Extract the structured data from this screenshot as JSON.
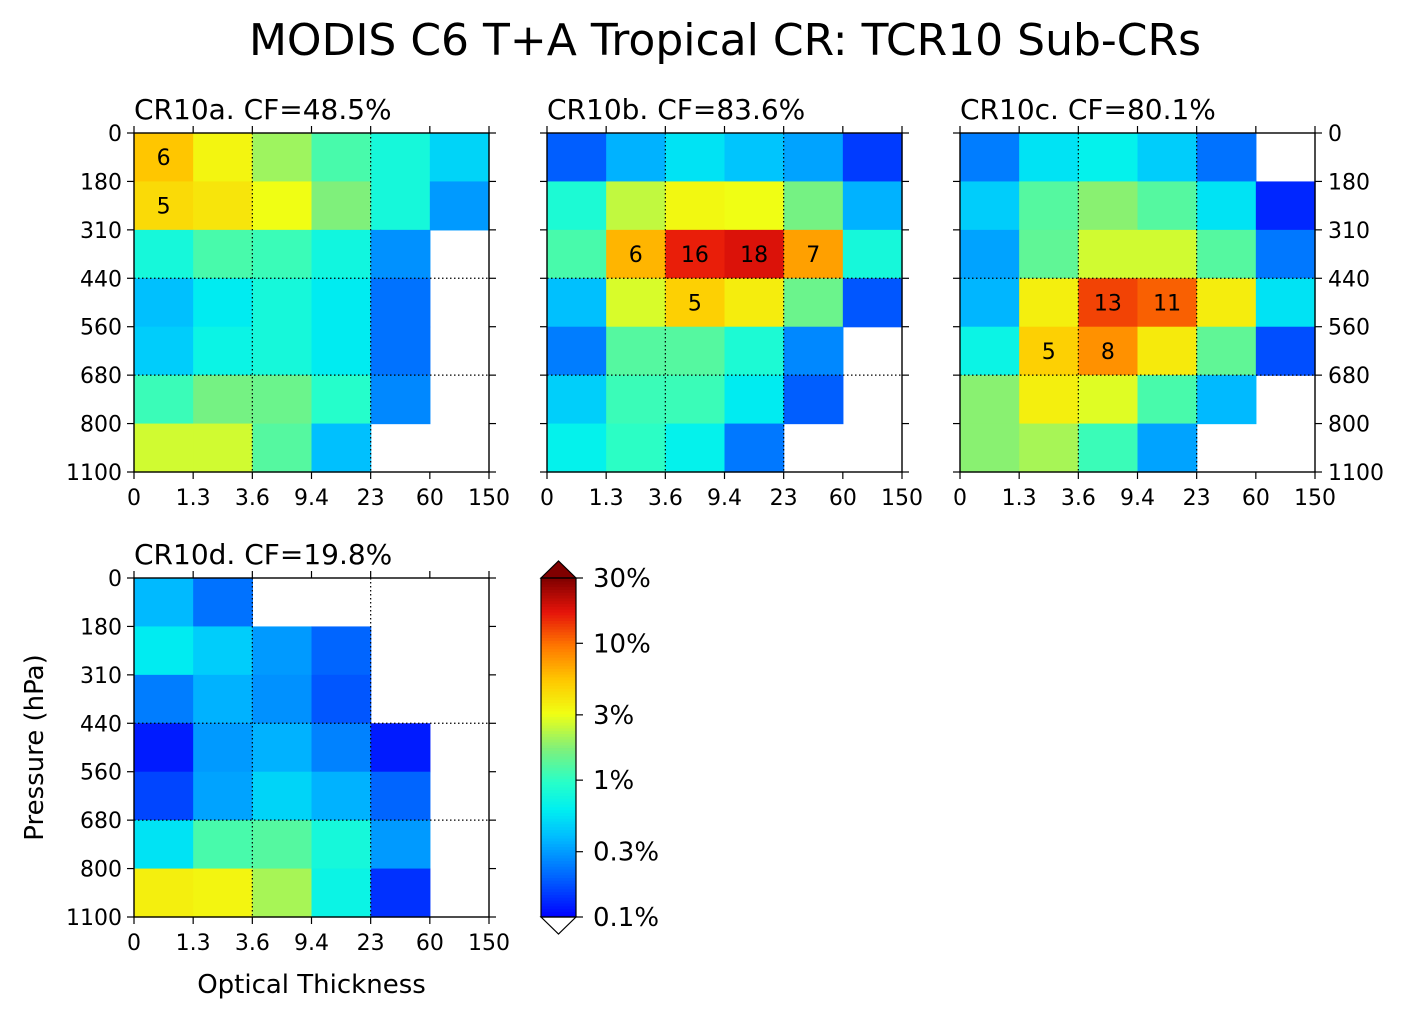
{
  "suptitle": "MODIS C6 T+A Tropical CR: TCR10 Sub-CRs",
  "chart_data": {
    "type": "heatmap",
    "x_tick_labels": [
      "0",
      "1.3",
      "3.6",
      "9.4",
      "23",
      "60",
      "150"
    ],
    "y_tick_labels": [
      "0",
      "180",
      "310",
      "440",
      "560",
      "680",
      "800",
      "1100"
    ],
    "xlabel": "Optical Thickness",
    "ylabel": "Pressure (hPa)",
    "value_unit": "%",
    "color_scale": "log",
    "colorbar": {
      "range": [
        0.1,
        30
      ],
      "extend": "both",
      "tick_values": [
        0.1,
        0.3,
        1,
        3,
        10,
        30
      ],
      "tick_labels": [
        "0.1%",
        "0.3%",
        "1%",
        "3%",
        "10%",
        "30%"
      ]
    },
    "panels": [
      {
        "title": "CR10a. CF=48.5%",
        "values": [
          [
            5.5,
            3.4,
            2.0,
            1.2,
            0.8,
            0.48
          ],
          [
            4.5,
            4.0,
            3.1,
            1.7,
            0.8,
            0.3
          ],
          [
            0.8,
            1.2,
            1.1,
            0.75,
            0.28,
            null
          ],
          [
            0.4,
            0.6,
            0.8,
            0.6,
            0.22,
            null
          ],
          [
            0.45,
            0.7,
            0.8,
            0.6,
            0.22,
            null
          ],
          [
            1.1,
            1.6,
            1.5,
            0.95,
            0.26,
            null
          ],
          [
            2.6,
            2.6,
            1.3,
            0.4,
            null,
            null
          ]
        ],
        "labels": [
          [
            6,
            null,
            null,
            null,
            null,
            null
          ],
          [
            5,
            null,
            null,
            null,
            null,
            null
          ],
          [
            null,
            null,
            null,
            null,
            null,
            null
          ],
          [
            null,
            null,
            null,
            null,
            null,
            null
          ],
          [
            null,
            null,
            null,
            null,
            null,
            null
          ],
          [
            null,
            null,
            null,
            null,
            null,
            null
          ],
          [
            null,
            null,
            null,
            null,
            null,
            null
          ]
        ]
      },
      {
        "title": "CR10b. CF=83.6%",
        "values": [
          [
            0.19,
            0.36,
            0.55,
            0.42,
            0.32,
            0.15
          ],
          [
            0.85,
            2.4,
            3.3,
            3.1,
            1.6,
            0.36
          ],
          [
            1.2,
            6.2,
            16,
            18,
            7.2,
            0.8
          ],
          [
            0.4,
            2.7,
            5.0,
            3.7,
            1.5,
            0.18
          ],
          [
            0.24,
            1.3,
            1.3,
            0.85,
            0.26,
            null
          ],
          [
            0.46,
            1.1,
            1.1,
            0.6,
            0.19,
            null
          ],
          [
            0.65,
            1.0,
            0.65,
            0.23,
            null,
            null
          ]
        ],
        "labels": [
          [
            null,
            null,
            null,
            null,
            null,
            null
          ],
          [
            null,
            null,
            null,
            null,
            null,
            null
          ],
          [
            null,
            6,
            16,
            18,
            7,
            null
          ],
          [
            null,
            null,
            5,
            null,
            null,
            null
          ],
          [
            null,
            null,
            null,
            null,
            null,
            null
          ],
          [
            null,
            null,
            null,
            null,
            null,
            null
          ],
          [
            null,
            null,
            null,
            null,
            null,
            null
          ]
        ]
      },
      {
        "title": "CR10c. CF=80.1%",
        "values": [
          [
            0.24,
            0.55,
            0.65,
            0.45,
            0.22,
            null
          ],
          [
            0.45,
            1.3,
            1.8,
            1.3,
            0.55,
            0.13
          ],
          [
            0.32,
            1.4,
            2.6,
            2.6,
            1.3,
            0.23
          ],
          [
            0.37,
            3.6,
            13,
            11,
            3.7,
            0.55
          ],
          [
            0.7,
            5.0,
            8.0,
            3.8,
            1.4,
            0.17
          ],
          [
            1.8,
            3.6,
            2.8,
            1.2,
            0.38,
            null
          ],
          [
            1.8,
            2.1,
            1.1,
            0.32,
            null,
            null
          ]
        ],
        "labels": [
          [
            null,
            null,
            null,
            null,
            null,
            null
          ],
          [
            null,
            null,
            null,
            null,
            null,
            null
          ],
          [
            null,
            null,
            null,
            null,
            null,
            null
          ],
          [
            null,
            null,
            13,
            11,
            null,
            null
          ],
          [
            null,
            5,
            8,
            null,
            null,
            null
          ],
          [
            null,
            null,
            null,
            null,
            null,
            null
          ],
          [
            null,
            null,
            null,
            null,
            null,
            null
          ]
        ]
      },
      {
        "title": "CR10d. CF=19.8%",
        "values": [
          [
            0.38,
            0.22,
            null,
            null,
            null,
            null
          ],
          [
            0.6,
            0.45,
            0.3,
            0.2,
            null,
            null
          ],
          [
            0.24,
            0.36,
            0.28,
            0.18,
            null,
            null
          ],
          [
            0.12,
            0.3,
            0.36,
            0.25,
            0.12,
            null
          ],
          [
            0.16,
            0.32,
            0.48,
            0.36,
            0.2,
            null
          ],
          [
            0.55,
            1.2,
            1.3,
            0.8,
            0.3,
            null
          ],
          [
            3.6,
            3.4,
            2.1,
            0.7,
            0.14,
            null
          ]
        ],
        "labels": [
          [
            null,
            null,
            null,
            null,
            null,
            null
          ],
          [
            null,
            null,
            null,
            null,
            null,
            null
          ],
          [
            null,
            null,
            null,
            null,
            null,
            null
          ],
          [
            null,
            null,
            null,
            null,
            null,
            null
          ],
          [
            null,
            null,
            null,
            null,
            null,
            null
          ],
          [
            null,
            null,
            null,
            null,
            null,
            null
          ],
          [
            null,
            null,
            null,
            null,
            null,
            null
          ]
        ]
      }
    ]
  }
}
